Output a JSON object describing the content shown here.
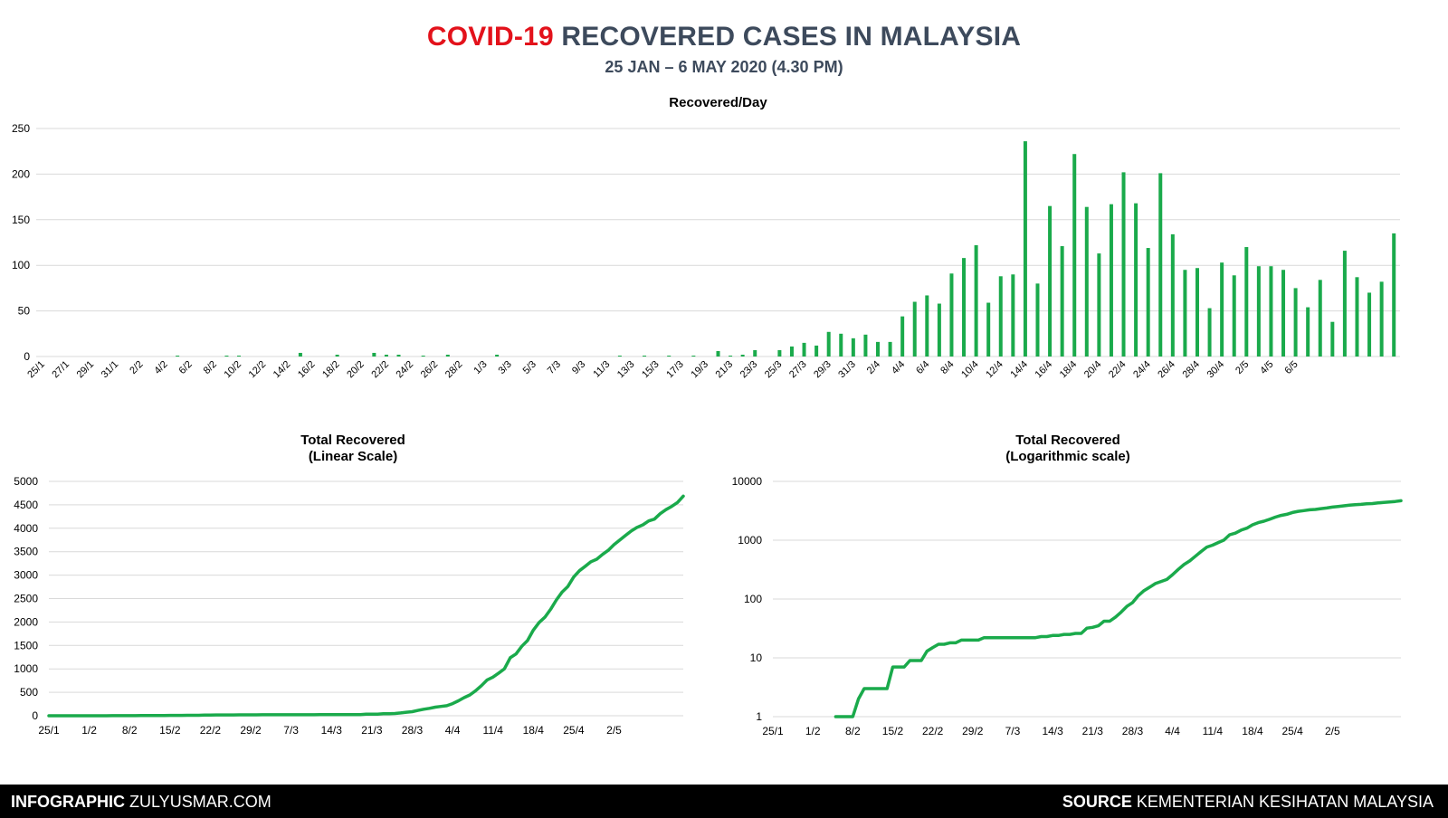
{
  "header": {
    "title_highlight": "COVID-19",
    "title_rest": "RECOVERED CASES IN MALAYSIA",
    "subtitle": "25 JAN – 6 MAY 2020 (4.30 PM)"
  },
  "footer": {
    "left_bold": "INFOGRAPHIC",
    "left_text": "ZULYUSMAR.COM",
    "right_bold": "SOURCE",
    "right_text": "KEMENTERIAN KESIHATAN MALAYSIA"
  },
  "colors": {
    "series": "#1aaa4b",
    "grid": "#d9d9d9",
    "text": "#000000",
    "highlight": "#e3121b",
    "title": "#3d4a5c"
  },
  "chart_data": [
    {
      "type": "bar",
      "title": "Recovered/Day",
      "ylim": [
        0,
        250
      ],
      "yticks": [
        0,
        50,
        100,
        150,
        200,
        250
      ],
      "x_start": "2020-01-25",
      "tick_labels": [
        "25/1",
        "27/1",
        "29/1",
        "31/1",
        "2/2",
        "4/2",
        "6/2",
        "8/2",
        "10/2",
        "12/2",
        "14/2",
        "16/2",
        "18/2",
        "20/2",
        "22/2",
        "24/2",
        "26/2",
        "28/2",
        "1/3",
        "3/3",
        "5/3",
        "7/3",
        "9/3",
        "11/3",
        "13/3",
        "15/3",
        "17/3",
        "19/3",
        "21/3",
        "23/3",
        "25/3",
        "27/3",
        "29/3",
        "31/3",
        "2/4",
        "4/4",
        "6/4",
        "8/4",
        "10/4",
        "12/4",
        "14/4",
        "16/4",
        "18/4",
        "20/4",
        "22/4",
        "24/4",
        "26/4",
        "28/4",
        "30/4",
        "2/5",
        "4/5",
        "6/5"
      ],
      "grid": true,
      "values": [
        0,
        0,
        0,
        0,
        0,
        0,
        0,
        0,
        0,
        0,
        0,
        1,
        0,
        0,
        0,
        1,
        1,
        0,
        0,
        0,
        0,
        4,
        0,
        0,
        2,
        0,
        0,
        4,
        2,
        2,
        0,
        1,
        0,
        2,
        0,
        0,
        0,
        2,
        0,
        0,
        0,
        0,
        0,
        0,
        0,
        0,
        0,
        1,
        0,
        1,
        0,
        1,
        0,
        1,
        0,
        6,
        1,
        2,
        7,
        0,
        7,
        11,
        15,
        12,
        27,
        25,
        20,
        24,
        16,
        16,
        44,
        60,
        67,
        58,
        91,
        108,
        122,
        59,
        88,
        90,
        236,
        80,
        165,
        121,
        222,
        164,
        113,
        167,
        202,
        168,
        119,
        201,
        134,
        95,
        97,
        53,
        103,
        89,
        120,
        99,
        99,
        95,
        75,
        54,
        84,
        38,
        116,
        87,
        70,
        82,
        135
      ]
    },
    {
      "type": "line",
      "title": "Total Recovered",
      "subtitle": "(Linear Scale)",
      "ylim": [
        0,
        5000
      ],
      "yticks": [
        0,
        500,
        1000,
        1500,
        2000,
        2500,
        3000,
        3500,
        4000,
        4500,
        5000
      ],
      "x_start": "2020-01-25",
      "tick_labels": [
        "25/1",
        "1/2",
        "8/2",
        "15/2",
        "22/2",
        "29/2",
        "7/3",
        "14/3",
        "21/3",
        "28/3",
        "4/4",
        "11/4",
        "18/4",
        "25/4",
        "2/5"
      ],
      "grid": true,
      "values": [
        0,
        0,
        0,
        0,
        0,
        0,
        0,
        0,
        0,
        0,
        0,
        1,
        1,
        1,
        1,
        2,
        3,
        3,
        3,
        3,
        3,
        7,
        7,
        7,
        9,
        9,
        9,
        13,
        15,
        17,
        17,
        18,
        18,
        20,
        20,
        20,
        20,
        22,
        22,
        22,
        22,
        22,
        22,
        22,
        22,
        22,
        22,
        23,
        23,
        24,
        24,
        25,
        25,
        26,
        26,
        32,
        33,
        35,
        42,
        42,
        49,
        60,
        75,
        87,
        114,
        139,
        159,
        183,
        199,
        215,
        259,
        319,
        386,
        444,
        535,
        643,
        765,
        824,
        912,
        1002,
        1238,
        1318,
        1483,
        1604,
        1826,
        1990,
        2103,
        2270,
        2472,
        2640,
        2759,
        2960,
        3094,
        3189,
        3286,
        3339,
        3442,
        3531,
        3651,
        3750,
        3849,
        3944,
        4019,
        4073,
        4157,
        4195,
        4311,
        4398,
        4468,
        4550,
        4685
      ]
    },
    {
      "type": "line",
      "title": "Total Recovered",
      "subtitle": "(Logarithmic scale)",
      "log_scale": true,
      "ylim": [
        1,
        10000
      ],
      "yticks": [
        1,
        10,
        100,
        1000,
        10000
      ],
      "x_start": "2020-01-25",
      "tick_labels": [
        "25/1",
        "1/2",
        "8/2",
        "15/2",
        "22/2",
        "29/2",
        "7/3",
        "14/3",
        "21/3",
        "28/3",
        "4/4",
        "11/4",
        "18/4",
        "25/4",
        "2/5"
      ],
      "grid": true,
      "values": [
        0,
        0,
        0,
        0,
        0,
        0,
        0,
        0,
        0,
        0,
        0,
        1,
        1,
        1,
        1,
        2,
        3,
        3,
        3,
        3,
        3,
        7,
        7,
        7,
        9,
        9,
        9,
        13,
        15,
        17,
        17,
        18,
        18,
        20,
        20,
        20,
        20,
        22,
        22,
        22,
        22,
        22,
        22,
        22,
        22,
        22,
        22,
        23,
        23,
        24,
        24,
        25,
        25,
        26,
        26,
        32,
        33,
        35,
        42,
        42,
        49,
        60,
        75,
        87,
        114,
        139,
        159,
        183,
        199,
        215,
        259,
        319,
        386,
        444,
        535,
        643,
        765,
        824,
        912,
        1002,
        1238,
        1318,
        1483,
        1604,
        1826,
        1990,
        2103,
        2270,
        2472,
        2640,
        2759,
        2960,
        3094,
        3189,
        3286,
        3339,
        3442,
        3531,
        3651,
        3750,
        3849,
        3944,
        4019,
        4073,
        4157,
        4195,
        4311,
        4398,
        4468,
        4550,
        4685
      ]
    }
  ]
}
